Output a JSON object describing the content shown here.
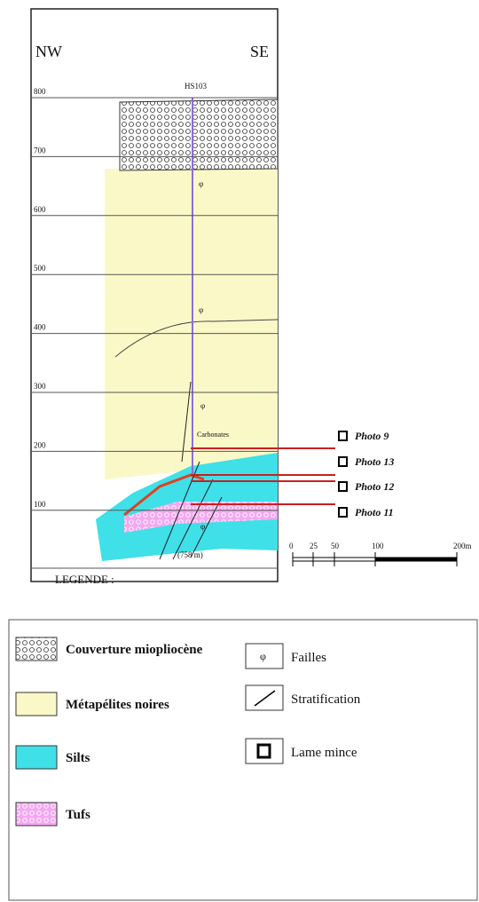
{
  "section": {
    "left_label": "NW",
    "right_label": "SE",
    "borehole": "HS103",
    "elevations": [
      "800",
      "700",
      "600",
      "500",
      "400",
      "300",
      "200",
      "100"
    ],
    "carbonate_label": "Carbonates",
    "depth_label": "(758 m)",
    "fault_symbol": "φ"
  },
  "photos": [
    "Photo 9",
    "Photo 13",
    "Photo 12",
    "Photo 11"
  ],
  "scale": {
    "labels": [
      "0",
      "25",
      "50",
      "100",
      "200m"
    ]
  },
  "legend_title": "LEGENDE :",
  "legend": {
    "items": [
      "Couverture miopliocène",
      "Métapélites noires",
      "Silts",
      "Tufs",
      "Failles",
      "Stratification",
      "Lame mince"
    ]
  }
}
